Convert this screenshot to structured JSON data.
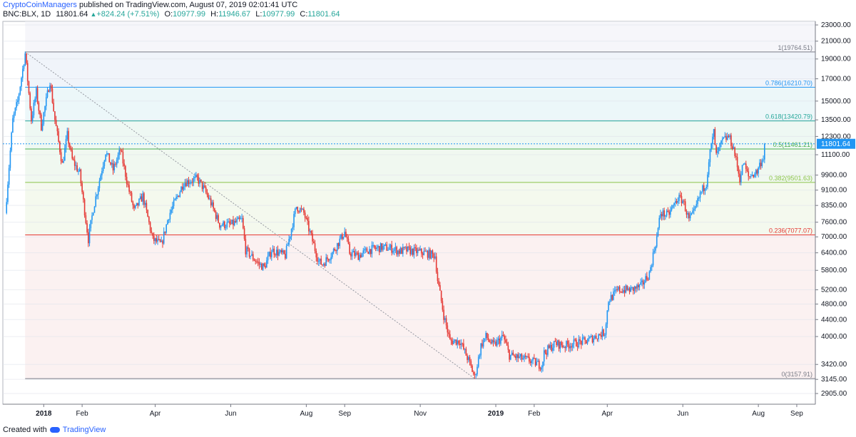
{
  "header": {
    "author": "CryptoCoinManagers",
    "published": "published on TradingView.com, August 07, 2019 02:01:41 UTC",
    "symbol": "BNC:BLX, 1D",
    "last": "11801.64",
    "change": "+824.24 (+7.51%)",
    "o_label": "O:",
    "o": "10977.99",
    "h_label": "H:",
    "h": "11946.67",
    "l_label": "L:",
    "l": "10977.99",
    "c_label": "C:",
    "c": "11801.64"
  },
  "footer": {
    "created_with": "Created with",
    "brand": "TradingView"
  },
  "colors": {
    "up": "#2196f3",
    "down": "#e53935",
    "background": "#ffffff"
  },
  "chart_data": {
    "type": "candlestick",
    "x_ticks": [
      "2018",
      "Feb",
      "Apr",
      "Jun",
      "Aug",
      "Sep",
      "Nov",
      "2019",
      "Feb",
      "Apr",
      "Jun",
      "Aug",
      "Sep"
    ],
    "y_ticks": [
      "23000.00",
      "21000.00",
      "19000.00",
      "17000.00",
      "15000.00",
      "13500.00",
      "12300.00",
      "11100.00",
      "9900.00",
      "9100.00",
      "8350.00",
      "7600.00",
      "7000.00",
      "6400.00",
      "5800.00",
      "5200.00",
      "4800.00",
      "4400.00",
      "4000.00",
      "3420.00",
      "3145.00",
      "2905.00"
    ],
    "y_scale": "log",
    "last_price": 11801.64,
    "fib_levels": [
      {
        "label": "1(19764.51)",
        "value": 19764.51,
        "color": "#787b86"
      },
      {
        "label": "0.786(16210.70)",
        "value": 16210.7,
        "color": "#2196f3"
      },
      {
        "label": "0.618(13420.79)",
        "value": 13420.79,
        "color": "#26a69a"
      },
      {
        "label": "0.5(11461.21)",
        "value": 11461.21,
        "color": "#4caf50"
      },
      {
        "label": "0.382(9501.63)",
        "value": 9501.63,
        "color": "#8bc34a"
      },
      {
        "label": "0.236(7077.07)",
        "value": 7077.07,
        "color": "#e53935"
      },
      {
        "label": "0(3157.91)",
        "value": 3157.91,
        "color": "#787b86"
      }
    ],
    "path": [
      [
        "2017-12-01",
        8000
      ],
      [
        "2017-12-07",
        13500
      ],
      [
        "2017-12-11",
        15000
      ],
      [
        "2017-12-17",
        19600
      ],
      [
        "2017-12-22",
        13500
      ],
      [
        "2017-12-26",
        15800
      ],
      [
        "2017-12-30",
        13000
      ],
      [
        "2018-01-06",
        16800
      ],
      [
        "2018-01-10",
        13500
      ],
      [
        "2018-01-16",
        10500
      ],
      [
        "2018-01-20",
        12400
      ],
      [
        "2018-01-24",
        10800
      ],
      [
        "2018-01-30",
        10000
      ],
      [
        "2018-02-06",
        6900
      ],
      [
        "2018-02-10",
        8200
      ],
      [
        "2018-02-20",
        11300
      ],
      [
        "2018-02-26",
        10200
      ],
      [
        "2018-03-04",
        11400
      ],
      [
        "2018-03-10",
        9300
      ],
      [
        "2018-03-15",
        8100
      ],
      [
        "2018-03-22",
        8800
      ],
      [
        "2018-03-30",
        6900
      ],
      [
        "2018-04-06",
        6700
      ],
      [
        "2018-04-12",
        7900
      ],
      [
        "2018-04-24",
        9500
      ],
      [
        "2018-05-05",
        9700
      ],
      [
        "2018-05-10",
        9200
      ],
      [
        "2018-05-15",
        8600
      ],
      [
        "2018-05-23",
        7500
      ],
      [
        "2018-06-01",
        7500
      ],
      [
        "2018-06-10",
        7700
      ],
      [
        "2018-06-13",
        6500
      ],
      [
        "2018-06-24",
        6000
      ],
      [
        "2018-06-28",
        5900
      ],
      [
        "2018-07-04",
        6500
      ],
      [
        "2018-07-15",
        6300
      ],
      [
        "2018-07-24",
        8300
      ],
      [
        "2018-07-30",
        8000
      ],
      [
        "2018-08-05",
        7000
      ],
      [
        "2018-08-11",
        6100
      ],
      [
        "2018-08-14",
        6000
      ],
      [
        "2018-08-22",
        6400
      ],
      [
        "2018-09-01",
        7200
      ],
      [
        "2018-09-05",
        6400
      ],
      [
        "2018-09-12",
        6300
      ],
      [
        "2018-09-20",
        6500
      ],
      [
        "2018-10-01",
        6600
      ],
      [
        "2018-10-10",
        6550
      ],
      [
        "2018-10-15",
        6450
      ],
      [
        "2018-10-20",
        6500
      ],
      [
        "2018-11-05",
        6400
      ],
      [
        "2018-11-13",
        6300
      ],
      [
        "2018-11-15",
        5500
      ],
      [
        "2018-11-20",
        4500
      ],
      [
        "2018-11-25",
        3900
      ],
      [
        "2018-12-03",
        3900
      ],
      [
        "2018-12-10",
        3500
      ],
      [
        "2018-12-15",
        3180
      ],
      [
        "2018-12-20",
        3800
      ],
      [
        "2018-12-24",
        4000
      ],
      [
        "2018-12-30",
        3800
      ],
      [
        "2019-01-07",
        4000
      ],
      [
        "2019-01-12",
        3600
      ],
      [
        "2019-01-20",
        3550
      ],
      [
        "2019-01-28",
        3500
      ],
      [
        "2019-02-07",
        3400
      ],
      [
        "2019-02-09",
        3650
      ],
      [
        "2019-02-18",
        3850
      ],
      [
        "2019-02-25",
        3800
      ],
      [
        "2019-03-05",
        3850
      ],
      [
        "2019-03-15",
        3900
      ],
      [
        "2019-03-30",
        4100
      ],
      [
        "2019-04-02",
        4900
      ],
      [
        "2019-04-10",
        5200
      ],
      [
        "2019-04-20",
        5200
      ],
      [
        "2019-04-28",
        5300
      ],
      [
        "2019-05-05",
        5700
      ],
      [
        "2019-05-11",
        7000
      ],
      [
        "2019-05-14",
        8000
      ],
      [
        "2019-05-20",
        7900
      ],
      [
        "2019-05-28",
        8700
      ],
      [
        "2019-06-01",
        8600
      ],
      [
        "2019-06-06",
        7700
      ],
      [
        "2019-06-10",
        8000
      ],
      [
        "2019-06-15",
        8900
      ],
      [
        "2019-06-20",
        9500
      ],
      [
        "2019-06-22",
        10800
      ],
      [
        "2019-06-26",
        12600
      ],
      [
        "2019-06-28",
        11000
      ],
      [
        "2019-07-03",
        12000
      ],
      [
        "2019-07-08",
        12300
      ],
      [
        "2019-07-12",
        11500
      ],
      [
        "2019-07-17",
        9700
      ],
      [
        "2019-07-20",
        10600
      ],
      [
        "2019-07-24",
        9800
      ],
      [
        "2019-07-31",
        10100
      ],
      [
        "2019-08-02",
        10500
      ],
      [
        "2019-08-05",
        10980
      ],
      [
        "2019-08-06",
        11801.64
      ]
    ]
  }
}
